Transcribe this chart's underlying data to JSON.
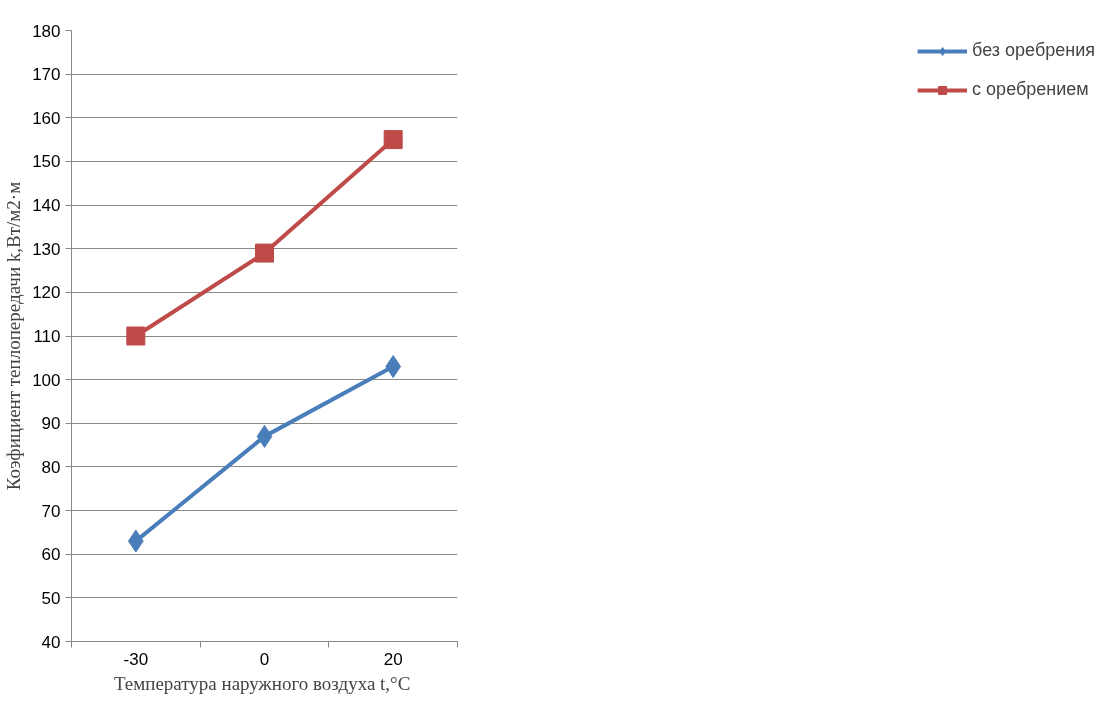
{
  "chart_data": {
    "type": "line",
    "categories": [
      "-30",
      "0",
      "20"
    ],
    "xlabel": "Температура  наружного воздуха t,°C",
    "ylabel": "Коэфициент теплопередачи k,Вт/м2·м",
    "series": [
      {
        "name": "без оребрения",
        "color": "#4a7ebb",
        "marker": "diamond",
        "values": [
          63,
          87,
          103
        ]
      },
      {
        "name": "с оребрением",
        "color": "#be4b48",
        "marker": "square",
        "values": [
          110,
          129,
          155
        ]
      }
    ],
    "ylim": [
      40,
      180
    ],
    "yticks": [
      40,
      50,
      60,
      70,
      80,
      90,
      100,
      110,
      120,
      130,
      140,
      150,
      160,
      170,
      180
    ],
    "grid": "y",
    "legend": "right",
    "line_style": "solid"
  }
}
